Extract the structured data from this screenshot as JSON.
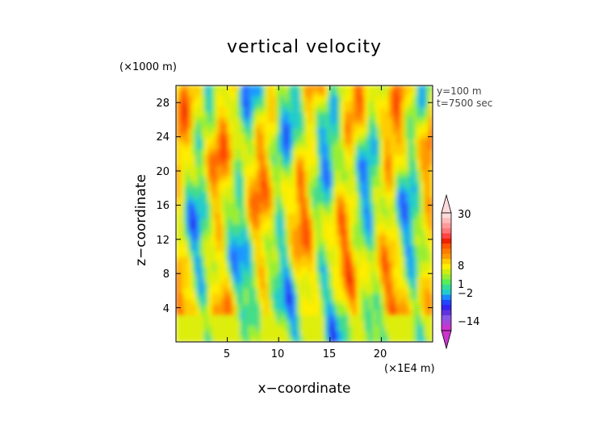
{
  "chart_data": {
    "type": "heatmap",
    "title": "vertical velocity",
    "xlabel": "x−coordinate",
    "ylabel": "z−coordinate",
    "x_unit": "(×1E4 m)",
    "y_unit": "(×1000 m)",
    "annotations": [
      "y=100  m",
      "t=7500 sec"
    ],
    "xlim": [
      0,
      25
    ],
    "ylim": [
      0,
      30
    ],
    "x_ticks": [
      "5",
      "10",
      "15",
      "20"
    ],
    "x_tick_values": [
      5,
      10,
      15,
      20
    ],
    "y_ticks": [
      "4",
      "8",
      "12",
      "16",
      "20",
      "24",
      "28"
    ],
    "y_tick_values": [
      4,
      8,
      12,
      16,
      20,
      24,
      28
    ],
    "colorbar": {
      "tick_labels": [
        "30",
        "8",
        "1",
        "−2",
        "−14"
      ],
      "tick_values": [
        30,
        8,
        1,
        -2,
        -14
      ],
      "extend": "both",
      "colors": [
        "#cc33cc",
        "#aa44d8",
        "#8855e5",
        "#5d33dd",
        "#3322ee",
        "#2244ff",
        "#1a88ff",
        "#22cccc",
        "#33dd99",
        "#55ee55",
        "#99ee33",
        "#ccee11",
        "#ffee00",
        "#ffcc00",
        "#ff9900",
        "#ff7a00",
        "#ff5500",
        "#ee2200",
        "#ff4444",
        "#ff7777",
        "#ff9a9a",
        "#ffbbbb",
        "#ffdada"
      ],
      "top_cap": "#ffdada",
      "bottom_cap": "#cc33cc"
    }
  }
}
